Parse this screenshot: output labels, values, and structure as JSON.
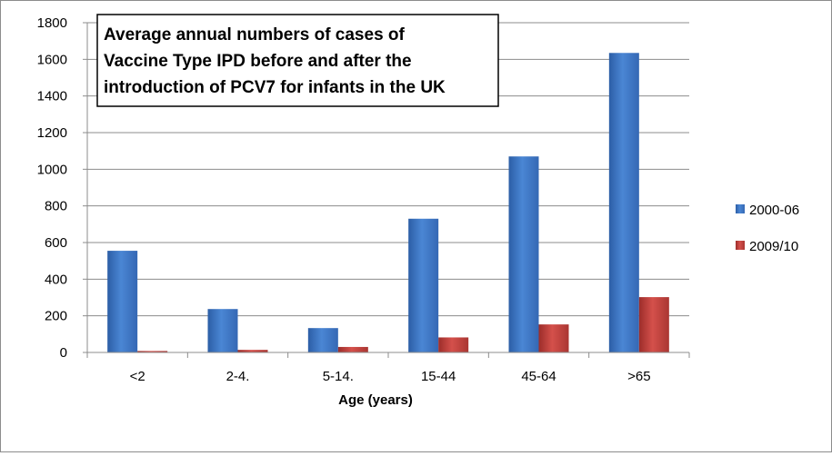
{
  "chart_data": {
    "type": "bar",
    "title": "Average annual  numbers of cases of Vaccine Type IPD before and after the introduction of PCV7 for infants in the UK",
    "title_lines": [
      "Average annual  numbers of cases of",
      "Vaccine Type IPD before and after the",
      "introduction of PCV7 for infants in the UK"
    ],
    "xlabel": "Age (years)",
    "ylabel": "",
    "categories": [
      "<2",
      "2-4.",
      "5-14.",
      "15-44",
      "45-64",
      ">65"
    ],
    "series": [
      {
        "name": "2000-06",
        "values": [
          555,
          237,
          133,
          730,
          1070,
          1635
        ],
        "color": "#3f78c8"
      },
      {
        "name": "2009/10",
        "values": [
          8,
          14,
          30,
          82,
          153,
          302
        ],
        "color": "#c0403c"
      }
    ],
    "ylim": [
      0,
      1800
    ],
    "yticks": [
      "0",
      "200",
      "400",
      "600",
      "800",
      "1000",
      "1200",
      "1400",
      "1600",
      "1800"
    ],
    "grid": true,
    "legend_position": "right"
  }
}
